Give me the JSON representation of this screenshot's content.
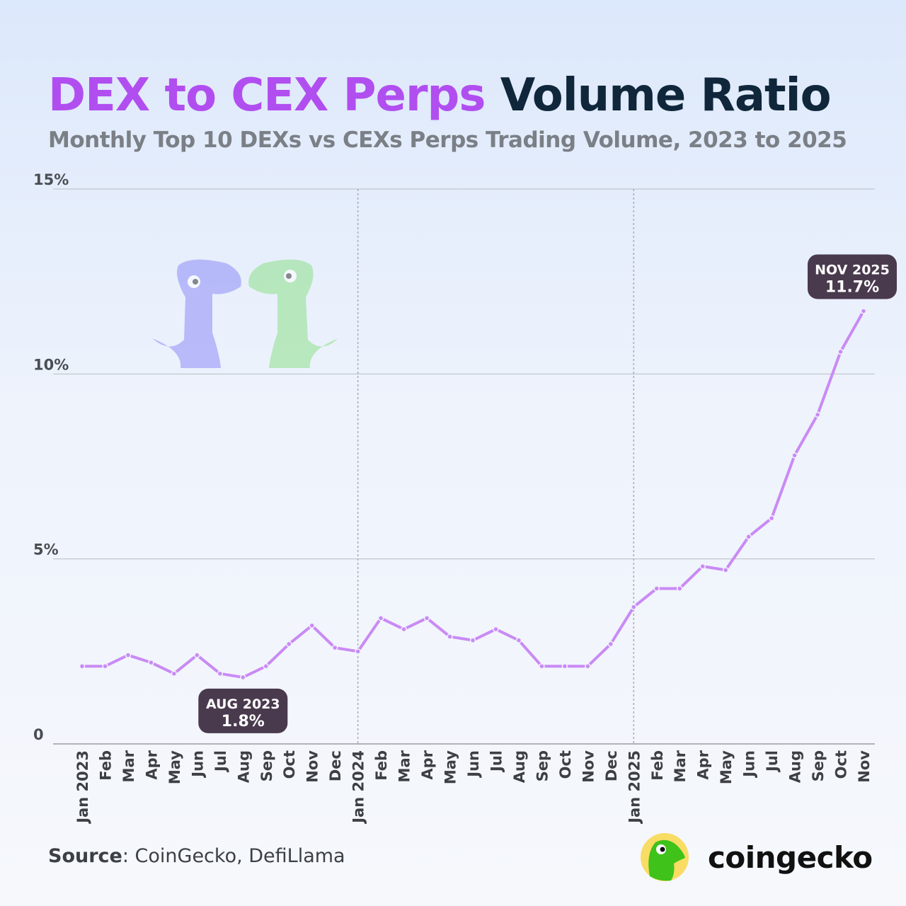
{
  "title": {
    "highlight": "DEX to CEX Perps",
    "rest": "Volume Ratio"
  },
  "subtitle": "Monthly Top 10 DEXs vs CEXs Perps Trading Volume, 2023 to 2025",
  "source": {
    "label": "Source",
    "text": ": CoinGecko, DefiLlama"
  },
  "logo": {
    "text": "coingecko"
  },
  "colors": {
    "line": "#c98af5",
    "title_accent": "#b14ef0",
    "title_dark": "#10263a",
    "callout_bg": "#4a3a4e"
  },
  "chart_data": {
    "type": "line",
    "title": "DEX to CEX Perps Volume Ratio",
    "ylim": [
      0,
      15
    ],
    "yticks": [
      {
        "v": 0,
        "label": "0"
      },
      {
        "v": 5,
        "label": "5%"
      },
      {
        "v": 10,
        "label": "10%"
      },
      {
        "v": 15,
        "label": "15%"
      }
    ],
    "grid": "horizontal",
    "year_dividers": [
      "Jan 2024",
      "Jan 2025"
    ],
    "categories": [
      "Jan 2023",
      "Feb",
      "Mar",
      "Apr",
      "May",
      "Jun",
      "Jul",
      "Aug",
      "Sep",
      "Oct",
      "Nov",
      "Dec",
      "Jan 2024",
      "Feb",
      "Mar",
      "Apr",
      "May",
      "Jun",
      "Jul",
      "Aug",
      "Sep",
      "Oct",
      "Nov",
      "Dec",
      "Jan 2025",
      "Feb",
      "Mar",
      "Apr",
      "May",
      "Jun",
      "Jul",
      "Aug",
      "Sep",
      "Oct",
      "Nov"
    ],
    "values": [
      2.1,
      2.1,
      2.4,
      2.2,
      1.9,
      2.4,
      1.9,
      1.8,
      2.1,
      2.7,
      3.2,
      2.6,
      2.5,
      3.4,
      3.1,
      3.4,
      2.9,
      2.8,
      3.1,
      2.8,
      2.1,
      2.1,
      2.1,
      2.7,
      3.7,
      4.2,
      4.2,
      4.8,
      4.7,
      5.6,
      6.1,
      7.8,
      8.9,
      10.6,
      11.7
    ],
    "annotations": [
      {
        "index": 7,
        "label": "AUG 2023",
        "value": "1.8%"
      },
      {
        "index": 34,
        "label": "NOV 2025",
        "value": "11.7%"
      }
    ]
  }
}
